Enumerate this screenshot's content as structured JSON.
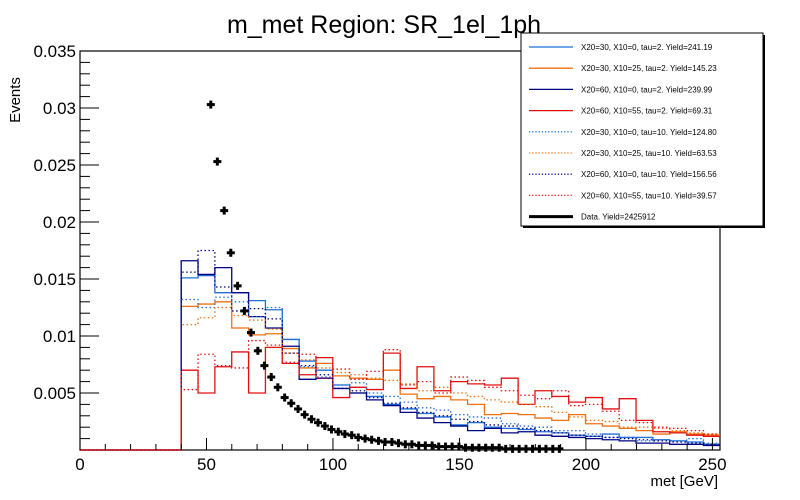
{
  "chart_data": {
    "type": "line",
    "title": "m_met Region: SR_1el_1ph",
    "xlabel": "met [GeV]",
    "ylabel": "Events",
    "xlim": [
      0,
      253
    ],
    "ylim": [
      0,
      0.035
    ],
    "xticks": [
      0,
      50,
      100,
      150,
      200,
      250
    ],
    "xtick_labels": [
      "0",
      "50",
      "100",
      "150",
      "200",
      "250"
    ],
    "yticks": [
      0.005,
      0.01,
      0.015,
      0.02,
      0.025,
      0.03,
      0.035
    ],
    "ytick_labels": [
      "0.005",
      "0.01",
      "0.015",
      "0.02",
      "0.025",
      "0.03",
      "0.035"
    ],
    "grid": false,
    "legend_position": "top-right",
    "bin_start": 40,
    "bin_width": 6.66,
    "series": [
      {
        "name": "X20=30, X10=0, tau=2. Yield=241.19",
        "color": "#1f6fd6",
        "style": "solid",
        "values": [
          0.0151,
          0.0153,
          0.0138,
          0.0138,
          0.0131,
          0.0123,
          0.0097,
          0.0078,
          0.007,
          0.0057,
          0.005,
          0.0047,
          0.004,
          0.0036,
          0.0032,
          0.0029,
          0.0022,
          0.0024,
          0.002,
          0.0019,
          0.0018,
          0.0016,
          0.0015,
          0.0013,
          0.0012,
          0.0014,
          0.0011,
          0.0011,
          0.0009,
          0.0008,
          0.0007,
          0.0005
        ]
      },
      {
        "name": "X20=30, X10=25, tau=2. Yield=145.23",
        "color": "#f07010",
        "style": "solid",
        "values": [
          0.0126,
          0.0128,
          0.013,
          0.0107,
          0.0101,
          0.0102,
          0.0089,
          0.0072,
          0.0076,
          0.0065,
          0.0063,
          0.0062,
          0.007,
          0.0049,
          0.0045,
          0.0047,
          0.0044,
          0.004,
          0.0031,
          0.0032,
          0.0031,
          0.0028,
          0.0026,
          0.0031,
          0.0023,
          0.0021,
          0.0019,
          0.0017,
          0.0014,
          0.0016,
          0.0014,
          0.0013
        ]
      },
      {
        "name": "X20=60, X10=0, tau=2. Yield=239.99",
        "color": "#000080",
        "style": "solid",
        "values": [
          0.0166,
          0.0154,
          0.016,
          0.0138,
          0.0117,
          0.0107,
          0.0091,
          0.0062,
          0.0063,
          0.0054,
          0.005,
          0.0044,
          0.0039,
          0.0033,
          0.0028,
          0.0024,
          0.0021,
          0.0017,
          0.0019,
          0.0015,
          0.0016,
          0.0013,
          0.0012,
          0.0011,
          0.001,
          0.0009,
          0.0008,
          0.0006,
          0.0006,
          0.0005,
          0.0005,
          0.0004
        ]
      },
      {
        "name": "X20=60, X10=55, tau=2. Yield=69.31",
        "color": "#e01010",
        "style": "solid",
        "values": [
          0.007,
          0.005,
          0.0073,
          0.0086,
          0.005,
          0.009,
          0.0076,
          0.0066,
          0.0081,
          0.0046,
          0.0055,
          0.0053,
          0.0085,
          0.0054,
          0.0073,
          0.0052,
          0.006,
          0.0058,
          0.0057,
          0.0063,
          0.004,
          0.0052,
          0.0047,
          0.0042,
          0.0046,
          0.0036,
          0.0045,
          0.0026,
          0.0016,
          0.0015,
          0.0013,
          0.0012
        ]
      },
      {
        "name": "X20=30, X10=0, tau=10. Yield=124.80",
        "color": "#1f6fd6",
        "style": "dotted",
        "values": [
          0.0132,
          0.0125,
          0.0134,
          0.013,
          0.0117,
          0.0125,
          0.0097,
          0.0073,
          0.0064,
          0.0057,
          0.0059,
          0.005,
          0.0047,
          0.0042,
          0.0037,
          0.0035,
          0.0031,
          0.0029,
          0.0028,
          0.0023,
          0.0021,
          0.002,
          0.0017,
          0.0017,
          0.0014,
          0.0011,
          0.0011,
          0.0008,
          0.0009,
          0.0008,
          0.001,
          0.0006
        ]
      },
      {
        "name": "X20=30, X10=25, tau=10. Yield=63.53",
        "color": "#f07010",
        "style": "dotted",
        "values": [
          0.011,
          0.0116,
          0.0125,
          0.0118,
          0.0114,
          0.0106,
          0.0085,
          0.0079,
          0.0072,
          0.0068,
          0.0066,
          0.0063,
          0.0061,
          0.0058,
          0.0052,
          0.0055,
          0.005,
          0.0047,
          0.0044,
          0.0042,
          0.004,
          0.0038,
          0.0033,
          0.0029,
          0.0026,
          0.0025,
          0.002,
          0.002,
          0.0019,
          0.0017,
          0.0015,
          0.0014
        ]
      },
      {
        "name": "X20=60, X10=0, tau=10. Yield=156.56",
        "color": "#000080",
        "style": "dotted",
        "values": [
          0.0156,
          0.0175,
          0.0143,
          0.0122,
          0.0124,
          0.0115,
          0.0085,
          0.0074,
          0.0066,
          0.0054,
          0.0052,
          0.0046,
          0.0041,
          0.0037,
          0.0033,
          0.003,
          0.0027,
          0.0025,
          0.0022,
          0.0021,
          0.0019,
          0.0017,
          0.0015,
          0.0013,
          0.0012,
          0.0011,
          0.001,
          0.0009,
          0.0008,
          0.0007,
          0.0006,
          0.0005
        ]
      },
      {
        "name": "X20=60, X10=55, tau=10. Yield=39.57",
        "color": "#e01010",
        "style": "dotted",
        "values": [
          0.0053,
          0.0084,
          0.0074,
          0.0072,
          0.0096,
          0.0092,
          0.0077,
          0.0084,
          0.0063,
          0.0071,
          0.0062,
          0.0069,
          0.0088,
          0.0057,
          0.006,
          0.005,
          0.0064,
          0.0061,
          0.0055,
          0.0052,
          0.0048,
          0.0045,
          0.0052,
          0.0039,
          0.004,
          0.0034,
          0.0026,
          0.0024,
          0.002,
          0.0019,
          0.0017,
          0.0014
        ]
      }
    ],
    "data_points": {
      "name": "Data. Yield=2425912",
      "color": "#000000",
      "x": [
        51.7,
        54.3,
        57.0,
        59.6,
        62.3,
        65.0,
        67.6,
        70.3,
        72.9,
        75.6,
        78.2,
        80.9,
        83.5,
        86.2,
        88.8,
        91.5,
        94.1,
        96.8,
        99.4,
        102.1,
        104.7,
        107.4,
        110.0,
        112.7,
        115.3,
        118.0,
        120.6,
        123.3,
        125.9,
        128.6,
        131.2,
        133.9,
        136.5,
        139.2,
        141.8,
        144.5,
        147.1,
        149.8,
        152.4,
        155.1,
        157.7,
        160.4,
        163.0,
        165.7,
        168.3,
        171.0,
        173.6,
        176.3,
        178.9,
        181.6,
        184.2,
        186.9,
        189.5
      ],
      "y": [
        0.0303,
        0.0253,
        0.021,
        0.0173,
        0.0144,
        0.0122,
        0.0103,
        0.0087,
        0.0074,
        0.0064,
        0.0055,
        0.0046,
        0.0041,
        0.0036,
        0.0031,
        0.0027,
        0.0024,
        0.0021,
        0.0018,
        0.0016,
        0.0014,
        0.0013,
        0.0011,
        0.001,
        0.0009,
        0.0008,
        0.0007,
        0.0007,
        0.0006,
        0.0005,
        0.0005,
        0.0004,
        0.0004,
        0.0004,
        0.0003,
        0.0003,
        0.0003,
        0.0003,
        0.0002,
        0.0002,
        0.0002,
        0.0002,
        0.0002,
        0.0002,
        0.0001,
        0.0001,
        0.0001,
        0.0001,
        0.0001,
        0.0001,
        0.0001,
        0.0001,
        0.0001
      ]
    }
  }
}
